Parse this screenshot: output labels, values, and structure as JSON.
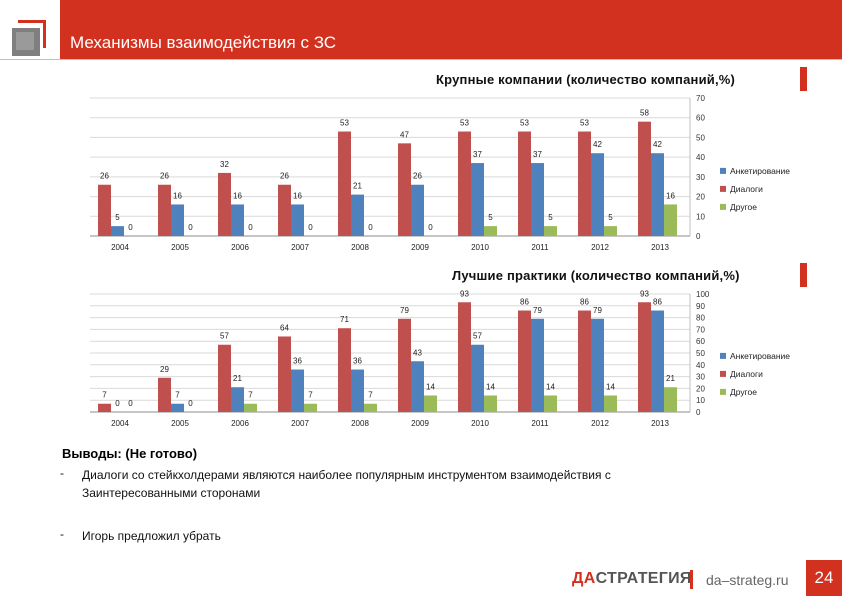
{
  "header": {
    "title": "Механизмы взаимодействия с ЗС"
  },
  "colors": {
    "accent": "#d2311f",
    "survey": "#4f81bd",
    "dialogs": "#c0504d",
    "other": "#9bbb59"
  },
  "chart_data": [
    {
      "type": "bar",
      "title": "Крупные компании (количество компаний,%)",
      "categories": [
        "2004",
        "2005",
        "2006",
        "2007",
        "2008",
        "2009",
        "2010",
        "2011",
        "2012",
        "2013"
      ],
      "series": [
        {
          "name": "Анкетирование",
          "values": [
            5,
            16,
            16,
            16,
            21,
            26,
            37,
            37,
            42,
            42
          ]
        },
        {
          "name": "Диалоги",
          "values": [
            26,
            26,
            32,
            26,
            53,
            47,
            53,
            53,
            53,
            58
          ]
        },
        {
          "name": "Другое",
          "values": [
            0,
            0,
            0,
            0,
            0,
            0,
            5,
            5,
            5,
            16
          ]
        }
      ],
      "labels": {
        "Анкетирование": [
          "5",
          "16",
          "16",
          "16",
          "21",
          "26",
          "37",
          "37",
          "42",
          "42"
        ],
        "Диалоги": [
          "26",
          "26",
          "32",
          "26",
          "53",
          "47",
          "53",
          "53",
          "53",
          "58"
        ],
        "Другое": [
          "0",
          "0",
          "0",
          "0",
          "0",
          "0",
          "5",
          "5",
          "5",
          "16"
        ]
      },
      "ylim": [
        0,
        70
      ],
      "yticks": [
        "0",
        "10",
        "20",
        "30",
        "40",
        "50",
        "60",
        "70"
      ],
      "legend": "right"
    },
    {
      "type": "bar",
      "title": "Лучшие практики (количество компаний,%)",
      "categories": [
        "2004",
        "2005",
        "2006",
        "2007",
        "2008",
        "2009",
        "2010",
        "2011",
        "2012",
        "2013"
      ],
      "series": [
        {
          "name": "Анкетирование",
          "values": [
            0,
            7,
            21,
            36,
            36,
            43,
            57,
            79,
            79,
            86
          ]
        },
        {
          "name": "Диалоги",
          "values": [
            7,
            29,
            57,
            64,
            71,
            79,
            93,
            86,
            86,
            93
          ]
        },
        {
          "name": "Другое",
          "values": [
            0,
            0,
            7,
            7,
            7,
            14,
            14,
            14,
            14,
            21
          ]
        }
      ],
      "labels": {
        "Анкетирование": [
          "0",
          "7",
          "21",
          "36",
          "36",
          "43",
          "57",
          "79",
          "79",
          "86"
        ],
        "Диалоги": [
          "7",
          "29",
          "57",
          "64",
          "71",
          "79",
          "93",
          "86",
          "86",
          "93"
        ],
        "Другое": [
          "0",
          "0",
          "7",
          "7",
          "7",
          "14",
          "14",
          "14",
          "14",
          "21"
        ]
      },
      "ylim": [
        0,
        100
      ],
      "yticks": [
        "0",
        "10",
        "20",
        "30",
        "40",
        "50",
        "60",
        "70",
        "80",
        "90",
        "100"
      ],
      "legend": "right"
    }
  ],
  "conclusions": {
    "title": "Выводы: (Не готово)",
    "bullet": "-",
    "items": [
      "Диалоги со стейкхолдерами являются наиболее популярным инструментом взаимодействия с Заинтересованными сторонами",
      "Игорь предложил убрать"
    ]
  },
  "footer": {
    "brand_prefix": "ДА",
    "brand_rest": "СТРАТЕГИЯ",
    "site": "da–strateg.ru",
    "page": "24"
  }
}
